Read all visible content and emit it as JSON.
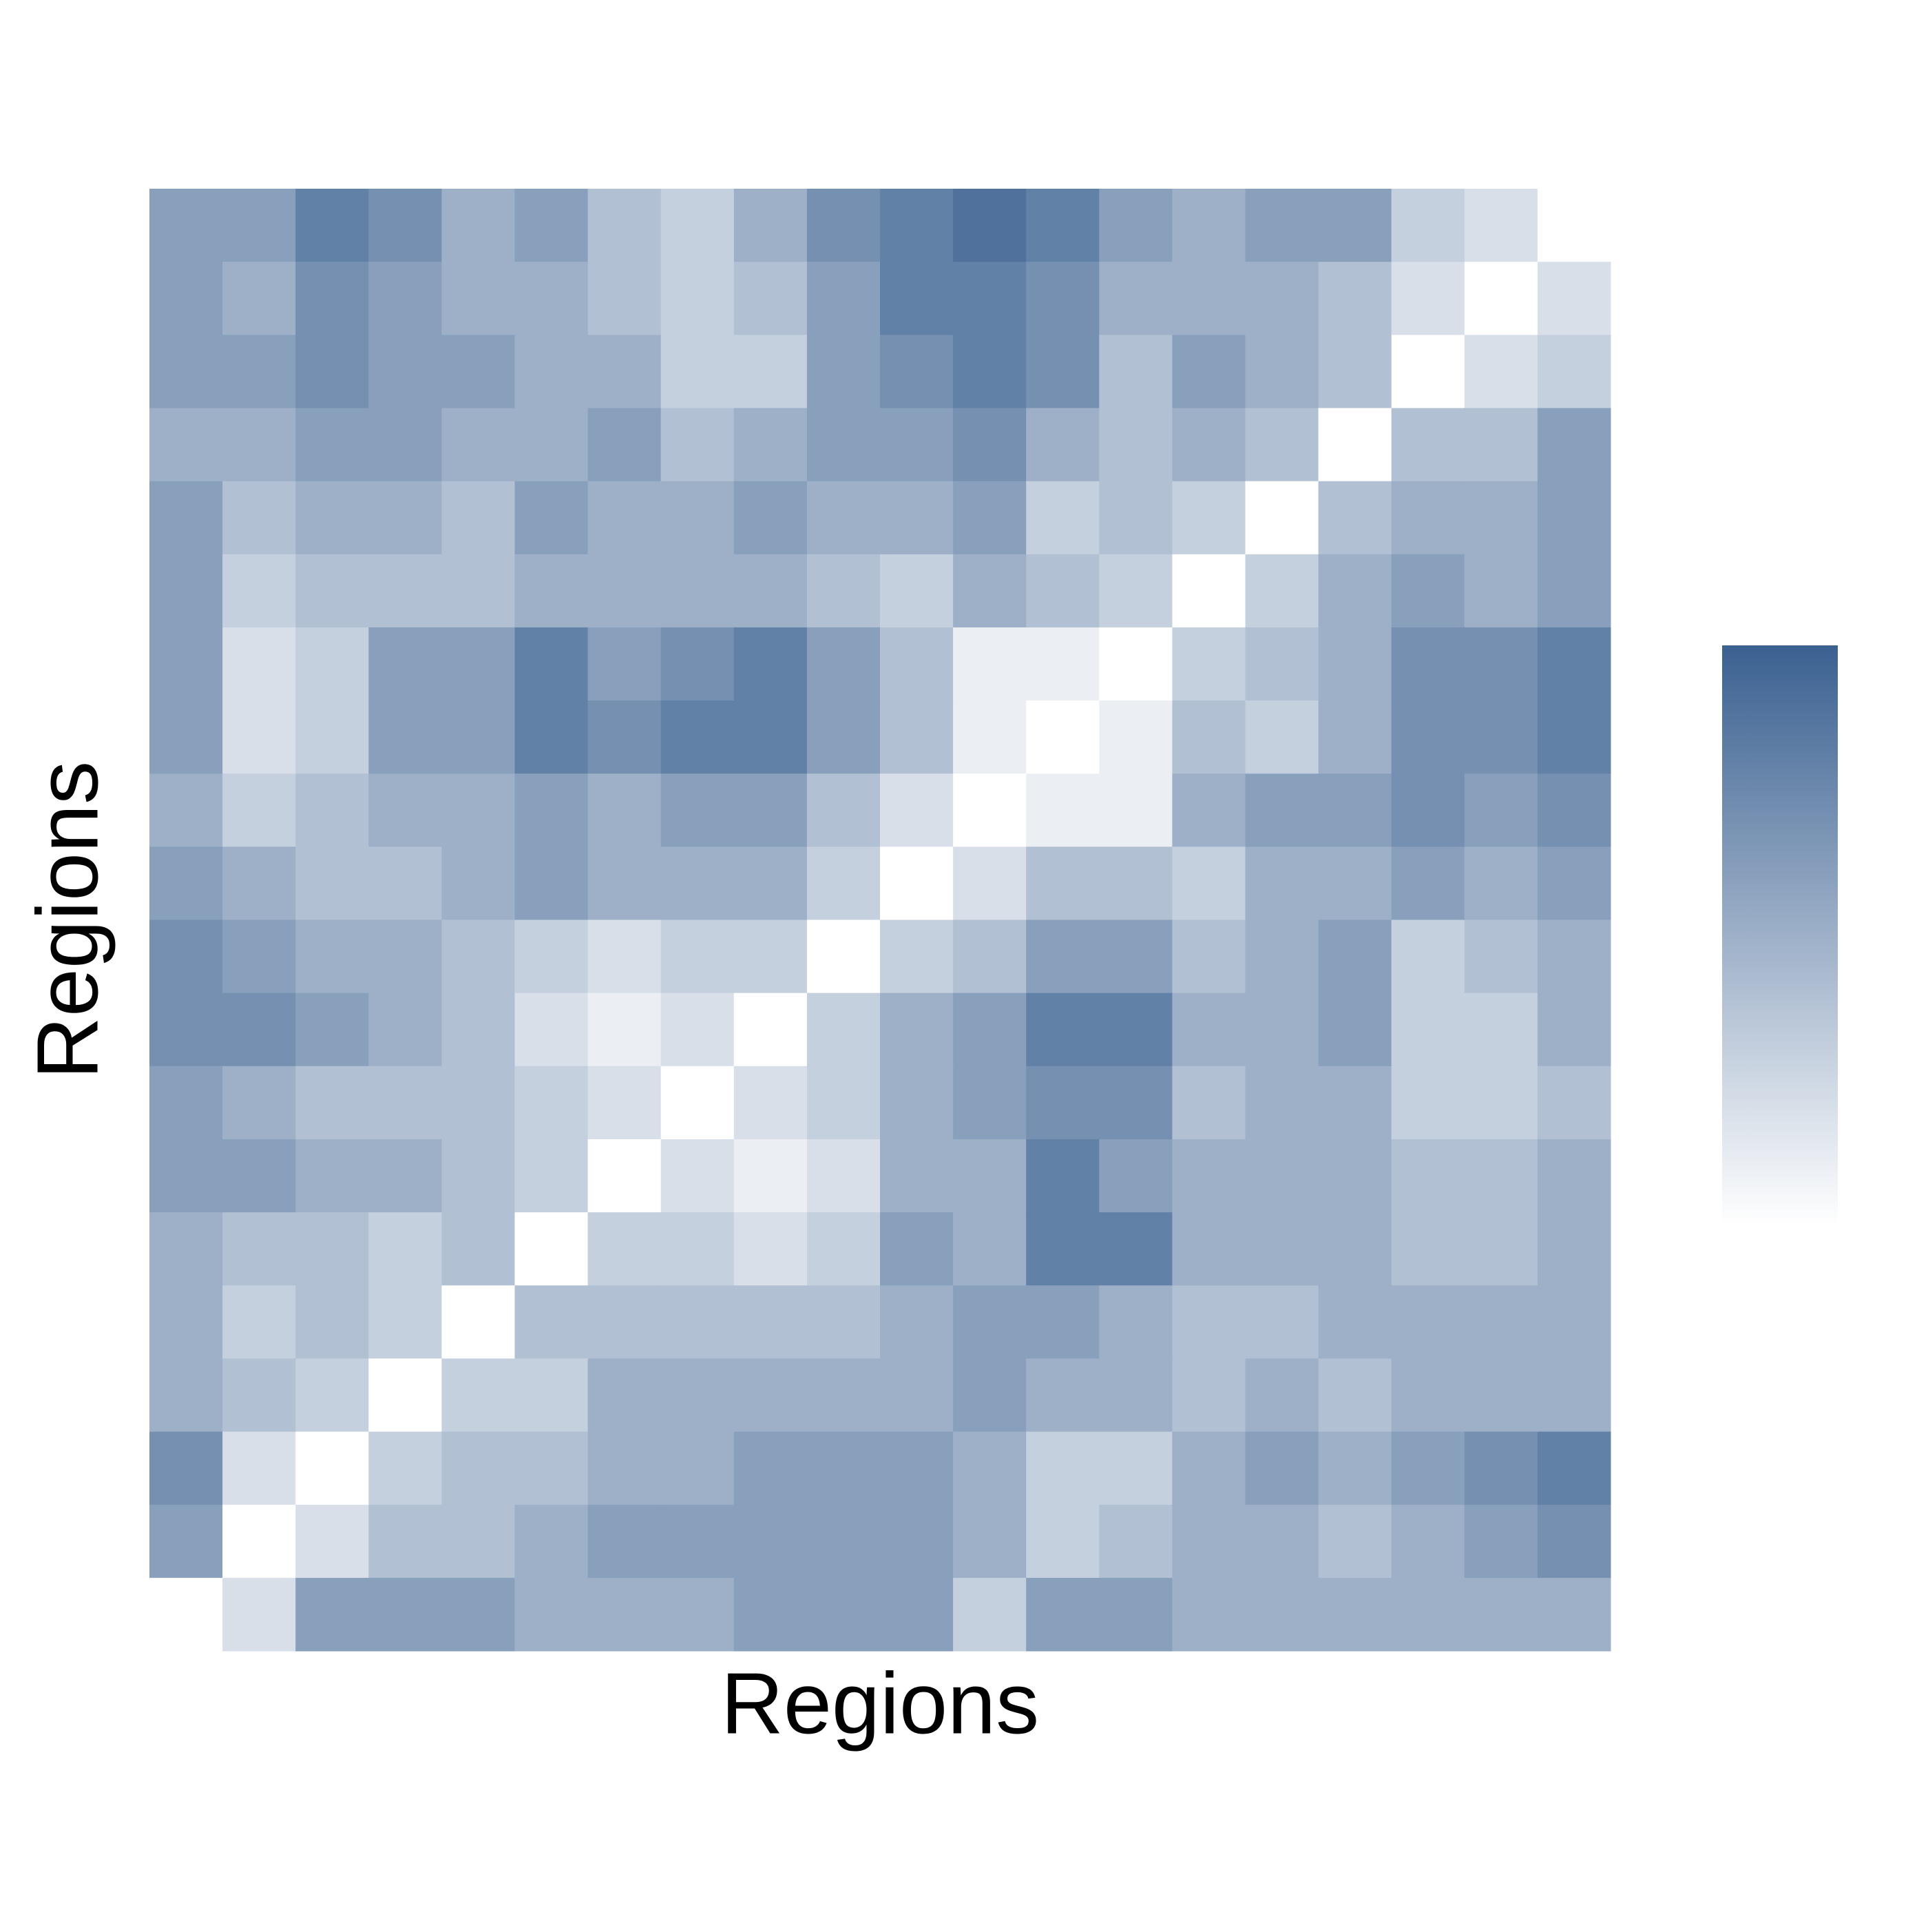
{
  "chart_data": {
    "type": "heatmap",
    "xlabel": "Regions",
    "ylabel": "Regions",
    "zlim": [
      0,
      1
    ],
    "colors": [
      "#ffffff",
      "#3b6191"
    ],
    "z": [
      [
        0.6,
        0.6,
        0.8,
        0.7,
        0.5,
        0.6,
        0.4,
        0.3,
        0.5,
        0.7,
        0.8,
        0.9,
        0.8,
        0.6,
        0.5,
        0.6,
        0.6,
        0.3,
        0.2,
        0.0
      ],
      [
        0.6,
        0.5,
        0.7,
        0.6,
        0.5,
        0.5,
        0.4,
        0.3,
        0.4,
        0.6,
        0.8,
        0.8,
        0.7,
        0.5,
        0.5,
        0.5,
        0.4,
        0.2,
        0.0,
        0.2
      ],
      [
        0.6,
        0.6,
        0.7,
        0.6,
        0.6,
        0.5,
        0.5,
        0.3,
        0.3,
        0.6,
        0.7,
        0.8,
        0.7,
        0.4,
        0.6,
        0.5,
        0.4,
        0.0,
        0.2,
        0.3
      ],
      [
        0.5,
        0.5,
        0.6,
        0.6,
        0.5,
        0.5,
        0.6,
        0.4,
        0.5,
        0.6,
        0.6,
        0.7,
        0.5,
        0.4,
        0.5,
        0.4,
        0.0,
        0.4,
        0.4,
        0.6
      ],
      [
        0.6,
        0.4,
        0.5,
        0.5,
        0.4,
        0.6,
        0.5,
        0.5,
        0.6,
        0.5,
        0.5,
        0.6,
        0.3,
        0.4,
        0.3,
        0.0,
        0.4,
        0.5,
        0.5,
        0.6
      ],
      [
        0.6,
        0.3,
        0.4,
        0.4,
        0.4,
        0.5,
        0.5,
        0.5,
        0.5,
        0.4,
        0.3,
        0.5,
        0.4,
        0.3,
        0.0,
        0.3,
        0.5,
        0.6,
        0.5,
        0.6
      ],
      [
        0.6,
        0.2,
        0.3,
        0.6,
        0.6,
        0.8,
        0.6,
        0.7,
        0.8,
        0.6,
        0.4,
        0.1,
        0.1,
        0.0,
        0.3,
        0.4,
        0.5,
        0.7,
        0.7,
        0.8
      ],
      [
        0.6,
        0.2,
        0.3,
        0.6,
        0.6,
        0.8,
        0.7,
        0.8,
        0.8,
        0.6,
        0.4,
        0.1,
        0.0,
        0.1,
        0.4,
        0.3,
        0.5,
        0.7,
        0.7,
        0.8
      ],
      [
        0.5,
        0.3,
        0.4,
        0.5,
        0.5,
        0.6,
        0.5,
        0.6,
        0.6,
        0.4,
        0.2,
        0.0,
        0.1,
        0.1,
        0.5,
        0.6,
        0.6,
        0.7,
        0.6,
        0.7
      ],
      [
        0.6,
        0.5,
        0.4,
        0.4,
        0.5,
        0.6,
        0.5,
        0.5,
        0.5,
        0.3,
        0.0,
        0.2,
        0.4,
        0.4,
        0.3,
        0.5,
        0.5,
        0.6,
        0.5,
        0.6
      ],
      [
        0.7,
        0.6,
        0.5,
        0.5,
        0.4,
        0.3,
        0.2,
        0.3,
        0.3,
        0.0,
        0.3,
        0.4,
        0.6,
        0.6,
        0.4,
        0.5,
        0.6,
        0.3,
        0.4,
        0.5
      ],
      [
        0.7,
        0.7,
        0.6,
        0.5,
        0.4,
        0.2,
        0.1,
        0.2,
        0.0,
        0.3,
        0.5,
        0.6,
        0.8,
        0.8,
        0.5,
        0.5,
        0.6,
        0.3,
        0.3,
        0.5
      ],
      [
        0.6,
        0.5,
        0.4,
        0.4,
        0.4,
        0.3,
        0.2,
        0.0,
        0.2,
        0.3,
        0.5,
        0.6,
        0.7,
        0.7,
        0.4,
        0.5,
        0.5,
        0.3,
        0.3,
        0.4
      ],
      [
        0.6,
        0.6,
        0.5,
        0.5,
        0.4,
        0.3,
        0.0,
        0.2,
        0.1,
        0.2,
        0.5,
        0.5,
        0.8,
        0.6,
        0.5,
        0.5,
        0.5,
        0.4,
        0.4,
        0.5
      ],
      [
        0.5,
        0.4,
        0.4,
        0.3,
        0.4,
        0.0,
        0.3,
        0.3,
        0.2,
        0.3,
        0.6,
        0.5,
        0.8,
        0.8,
        0.5,
        0.5,
        0.5,
        0.4,
        0.4,
        0.5
      ],
      [
        0.5,
        0.3,
        0.4,
        0.3,
        0.0,
        0.4,
        0.4,
        0.4,
        0.4,
        0.4,
        0.5,
        0.6,
        0.6,
        0.5,
        0.4,
        0.4,
        0.5,
        0.5,
        0.5,
        0.5
      ],
      [
        0.5,
        0.4,
        0.3,
        0.0,
        0.3,
        0.3,
        0.5,
        0.5,
        0.5,
        0.5,
        0.5,
        0.6,
        0.5,
        0.5,
        0.4,
        0.5,
        0.4,
        0.5,
        0.5,
        0.5
      ],
      [
        0.7,
        0.2,
        0.0,
        0.3,
        0.4,
        0.4,
        0.5,
        0.5,
        0.6,
        0.6,
        0.6,
        0.5,
        0.3,
        0.3,
        0.5,
        0.6,
        0.5,
        0.6,
        0.7,
        0.8
      ],
      [
        0.6,
        0.0,
        0.2,
        0.4,
        0.4,
        0.5,
        0.6,
        0.6,
        0.6,
        0.6,
        0.6,
        0.5,
        0.3,
        0.4,
        0.5,
        0.5,
        0.4,
        0.5,
        0.6,
        0.7
      ],
      [
        0.0,
        0.2,
        0.6,
        0.6,
        0.6,
        0.5,
        0.5,
        0.5,
        0.6,
        0.6,
        0.6,
        0.3,
        0.6,
        0.6,
        0.5,
        0.5,
        0.5,
        0.5,
        0.5,
        0.5
      ]
    ]
  }
}
